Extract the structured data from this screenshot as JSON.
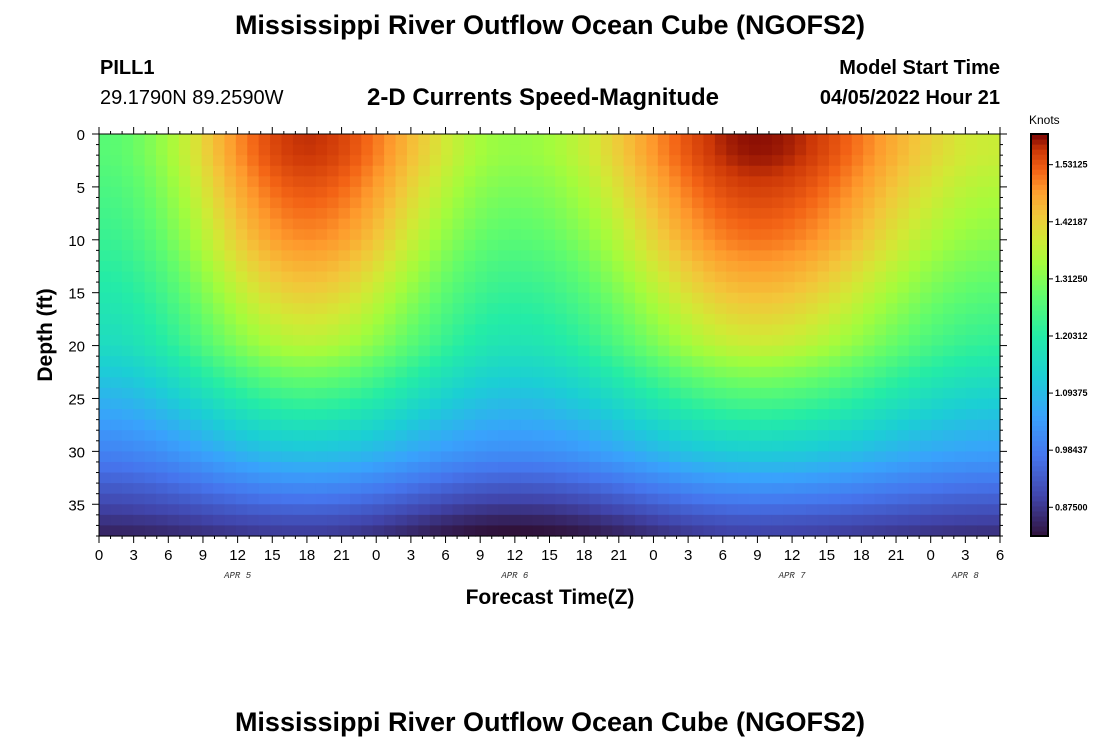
{
  "header": {
    "title": "Mississippi River Outflow Ocean Cube (NGOFS2)",
    "station": "PILL1",
    "coords": "29.1790N  89.2590W",
    "subtitle": "2-D Currents Speed-Magnitude",
    "start_label": "Model Start Time",
    "start_value": "04/05/2022 Hour 21"
  },
  "footer": {
    "title": "Mississippi River Outflow Ocean Cube (NGOFS2)"
  },
  "chart_data": {
    "type": "heatmap",
    "title": "2-D Currents Speed-Magnitude",
    "xlabel": "Forecast Time(Z)",
    "ylabel": "Depth (ft)",
    "x_tick_labels": [
      "0",
      "3",
      "6",
      "9",
      "12",
      "15",
      "18",
      "21",
      "0",
      "3",
      "6",
      "9",
      "12",
      "15",
      "18",
      "21",
      "0",
      "3",
      "6",
      "9",
      "12",
      "15",
      "18",
      "21",
      "0",
      "3",
      "6"
    ],
    "x_range_hours_from_apr5_00z": [
      0,
      78
    ],
    "day_labels": [
      {
        "label": "APR 5",
        "hour": 12
      },
      {
        "label": "APR 6",
        "hour": 36
      },
      {
        "label": "APR 7",
        "hour": 60
      },
      {
        "label": "APR 8",
        "hour": 75
      }
    ],
    "y_ticks": [
      0,
      5,
      10,
      15,
      20,
      25,
      30,
      35
    ],
    "ylim": [
      38,
      0
    ],
    "colorbar": {
      "label": "Knots",
      "ticks": [
        "1.53125",
        "1.42187",
        "1.31250",
        "1.20312",
        "1.09375",
        "0.98437",
        "0.87500"
      ],
      "tick_values": [
        1.53125,
        1.421875,
        1.3125,
        1.203125,
        1.09375,
        0.984375,
        0.875
      ],
      "range": [
        0.82,
        1.59
      ]
    },
    "speed_profile_samples_knots": [
      {
        "hour": 0,
        "depth_2ft": 1.27,
        "depth_10ft": 1.23,
        "depth_20ft": 1.16,
        "depth_30ft": 1.0,
        "depth_37ft": 0.86
      },
      {
        "hour": 18,
        "depth_2ft": 1.56,
        "depth_10ft": 1.49,
        "depth_20ft": 1.36,
        "depth_30ft": 1.11,
        "depth_37ft": 0.9
      },
      {
        "hour": 36,
        "depth_2ft": 1.33,
        "depth_10ft": 1.27,
        "depth_20ft": 1.18,
        "depth_30ft": 1.02,
        "depth_37ft": 0.83
      },
      {
        "hour": 57,
        "depth_2ft": 1.58,
        "depth_10ft": 1.51,
        "depth_20ft": 1.38,
        "depth_30ft": 1.13,
        "depth_37ft": 0.91
      },
      {
        "hour": 78,
        "depth_2ft": 1.38,
        "depth_10ft": 1.32,
        "depth_20ft": 1.22,
        "depth_30ft": 1.05,
        "depth_37ft": 0.88
      }
    ]
  }
}
